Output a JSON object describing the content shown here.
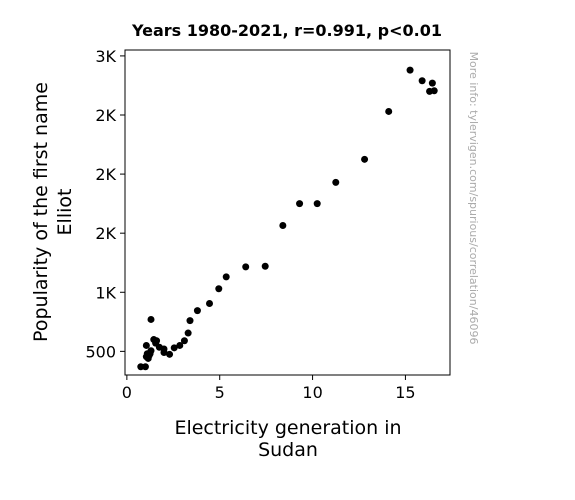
{
  "chart_data": {
    "type": "scatter",
    "title": "Years 1980-2021, r=0.991, p<0.01",
    "xlabel_lines": [
      "Electricity generation in",
      "Sudan"
    ],
    "ylabel_lines": [
      "Popularity of the first name",
      "Elliot"
    ],
    "watermark": "More info: tylervigen.com/spurious/correlation/46096",
    "xlim": [
      -0.1,
      17.4
    ],
    "ylim": [
      300,
      3050
    ],
    "xticks": [
      {
        "value": 0,
        "label": "0"
      },
      {
        "value": 5,
        "label": "5"
      },
      {
        "value": 10,
        "label": "10"
      },
      {
        "value": 15,
        "label": "15"
      }
    ],
    "yticks": [
      {
        "value": 500,
        "label": "500"
      },
      {
        "value": 1000,
        "label": "1K"
      },
      {
        "value": 1500,
        "label": "2K"
      },
      {
        "value": 2000,
        "label": "2K"
      },
      {
        "value": 2500,
        "label": "2K"
      },
      {
        "value": 3000,
        "label": "3K"
      }
    ],
    "marker_color": "#000000",
    "points": [
      {
        "x": 0.75,
        "y": 370
      },
      {
        "x": 1.0,
        "y": 370
      },
      {
        "x": 1.05,
        "y": 550
      },
      {
        "x": 1.05,
        "y": 455
      },
      {
        "x": 1.1,
        "y": 480
      },
      {
        "x": 1.15,
        "y": 440
      },
      {
        "x": 1.2,
        "y": 465
      },
      {
        "x": 1.25,
        "y": 480
      },
      {
        "x": 1.3,
        "y": 505
      },
      {
        "x": 1.3,
        "y": 770
      },
      {
        "x": 1.45,
        "y": 600
      },
      {
        "x": 1.55,
        "y": 570
      },
      {
        "x": 1.6,
        "y": 590
      },
      {
        "x": 1.75,
        "y": 535
      },
      {
        "x": 2.0,
        "y": 520
      },
      {
        "x": 2.0,
        "y": 490
      },
      {
        "x": 2.3,
        "y": 475
      },
      {
        "x": 2.55,
        "y": 530
      },
      {
        "x": 2.85,
        "y": 550
      },
      {
        "x": 3.1,
        "y": 590
      },
      {
        "x": 3.3,
        "y": 655
      },
      {
        "x": 3.4,
        "y": 760
      },
      {
        "x": 3.8,
        "y": 845
      },
      {
        "x": 4.45,
        "y": 905
      },
      {
        "x": 4.95,
        "y": 1030
      },
      {
        "x": 5.35,
        "y": 1130
      },
      {
        "x": 6.4,
        "y": 1215
      },
      {
        "x": 7.45,
        "y": 1220
      },
      {
        "x": 8.4,
        "y": 1565
      },
      {
        "x": 9.3,
        "y": 1750
      },
      {
        "x": 10.25,
        "y": 1750
      },
      {
        "x": 11.25,
        "y": 1930
      },
      {
        "x": 12.8,
        "y": 2125
      },
      {
        "x": 14.1,
        "y": 2530
      },
      {
        "x": 15.25,
        "y": 2880
      },
      {
        "x": 15.9,
        "y": 2790
      },
      {
        "x": 16.3,
        "y": 2700
      },
      {
        "x": 16.45,
        "y": 2770
      },
      {
        "x": 16.55,
        "y": 2705
      }
    ]
  }
}
